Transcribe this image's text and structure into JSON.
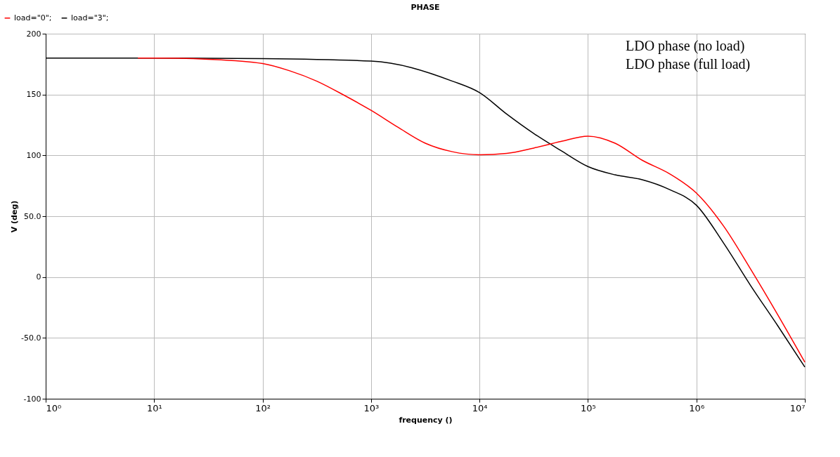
{
  "chart_data": {
    "type": "line",
    "title": "PHASE",
    "xlabel": "frequency ()",
    "ylabel": "V (deg)",
    "log": "x",
    "grid": true,
    "legend": "top left",
    "line_style": "solid",
    "marker": "none",
    "xlim": [
      1,
      10000000
    ],
    "xticks": [
      {
        "value": 1,
        "label": "10⁰"
      },
      {
        "value": 10,
        "label": "10¹"
      },
      {
        "value": 100,
        "label": "10²"
      },
      {
        "value": 1000,
        "label": "10³"
      },
      {
        "value": 10000,
        "label": "10⁴"
      },
      {
        "value": 100000,
        "label": "10⁵"
      },
      {
        "value": 1000000,
        "label": "10⁶"
      },
      {
        "value": 10000000,
        "label": "10⁷"
      }
    ],
    "ylim": [
      -100,
      200
    ],
    "yticks": [
      -100,
      {
        "value": -50,
        "label": "-50.0"
      },
      0,
      {
        "value": 50,
        "label": "50.0"
      },
      100,
      150,
      200
    ],
    "annotations": [
      "LDO phase (no load)",
      "LDO phase (full load)"
    ],
    "series": [
      {
        "name": "load=\"0\";",
        "color": "#ff0000",
        "x": [
          7.08,
          10,
          31.6,
          100,
          178,
          316,
          562,
          1000,
          1778,
          3162,
          5623,
          10000,
          17783,
          31623,
          56234,
          100000,
          177828,
          316228,
          562341,
          1000000,
          1778279,
          3162278,
          5623413,
          10000000
        ],
        "values": [
          180,
          180,
          179,
          175.5,
          169.5,
          161,
          149.5,
          137,
          123,
          110,
          103,
          100.5,
          101.6,
          106,
          111.4,
          115.8,
          110,
          96,
          85,
          69,
          42,
          6.5,
          -31,
          -70
        ]
      },
      {
        "name": "load=\"3\";",
        "color": "#000000",
        "x": [
          1,
          10,
          100,
          1000,
          5623,
          10000,
          17783,
          31623,
          56234,
          100000,
          177828,
          316228,
          562341,
          1000000,
          1778279,
          3162278,
          5623413,
          10000000
        ],
        "values": [
          180,
          180,
          179.5,
          177.5,
          161,
          151.6,
          134,
          118,
          104,
          90.8,
          84,
          80,
          72,
          59,
          28,
          -7,
          -40,
          -74
        ]
      }
    ]
  }
}
